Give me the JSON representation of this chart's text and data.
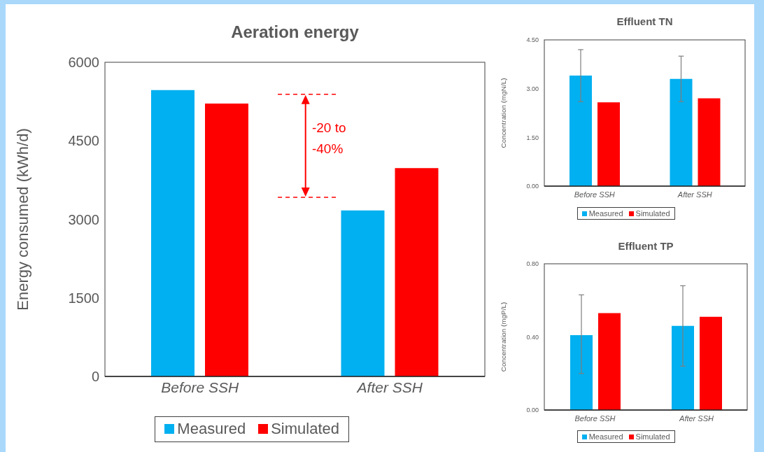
{
  "chart_data": [
    {
      "type": "bar",
      "title": "Aeration energy",
      "ylabel": "Energy consumed (kWh/d)",
      "categories": [
        "Before SSH",
        "After SSH"
      ],
      "series": [
        {
          "name": "Measured",
          "color": "#00b0f0",
          "values": [
            5470,
            3170
          ]
        },
        {
          "name": "Simulated",
          "color": "#ff0000",
          "values": [
            5210,
            3980
          ]
        }
      ],
      "ylim": [
        0,
        6000
      ],
      "yticks": [
        0,
        1500,
        3000,
        4500,
        6000
      ],
      "grid": false,
      "legend": "bottom",
      "ref_lines": [
        {
          "axis": "y",
          "value": 5390,
          "color": "#ff0000",
          "line_style": "dashed"
        },
        {
          "axis": "y",
          "value": 3420,
          "color": "#ff0000",
          "line_style": "dashed"
        }
      ],
      "annotations": [
        "-20 to -40%"
      ]
    },
    {
      "type": "bar",
      "title": "Effluent TN",
      "ylabel": "Concentration (mgN/L)",
      "categories": [
        "Before SSH",
        "After SSH"
      ],
      "series": [
        {
          "name": "Measured",
          "color": "#00b0f0",
          "values": [
            3.4,
            3.3
          ],
          "errors": [
            [
              2.6,
              4.2
            ],
            [
              2.6,
              4.0
            ]
          ]
        },
        {
          "name": "Simulated",
          "color": "#ff0000",
          "values": [
            2.58,
            2.7
          ]
        }
      ],
      "ylim": [
        0,
        4.5
      ],
      "yticks": [
        {
          "value": 0,
          "label": "0.00"
        },
        {
          "value": 1.5,
          "label": "1.50"
        },
        {
          "value": 3,
          "label": "3.00"
        },
        {
          "value": 4.5,
          "label": "4.50"
        }
      ],
      "grid": false,
      "legend": "bottom"
    },
    {
      "type": "bar",
      "title": "Effluent TP",
      "ylabel": "Concentration (mgP/L)",
      "categories": [
        "Before SSH",
        "After SSH"
      ],
      "series": [
        {
          "name": "Measured",
          "color": "#00b0f0",
          "values": [
            0.41,
            0.46
          ],
          "errors": [
            [
              0.2,
              0.63
            ],
            [
              0.24,
              0.68
            ]
          ]
        },
        {
          "name": "Simulated",
          "color": "#ff0000",
          "values": [
            0.53,
            0.51
          ]
        }
      ],
      "ylim": [
        0,
        0.8
      ],
      "yticks": [
        {
          "value": 0,
          "label": "0.00"
        },
        {
          "value": 0.4,
          "label": "0.40"
        },
        {
          "value": 0.8,
          "label": "0.80"
        }
      ],
      "grid": false,
      "legend": "bottom"
    }
  ]
}
